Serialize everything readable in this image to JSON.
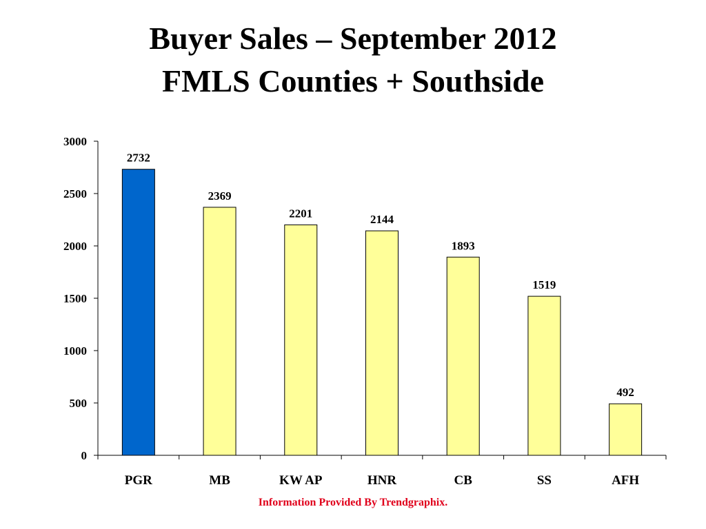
{
  "slide": {
    "title_line1": "Buyer Sales – September 2012",
    "title_line2": "FMLS Counties + Southside",
    "footer": "Information Provided By Trendgraphix."
  },
  "colors": {
    "highlight_bar": "#0066cc",
    "default_bar": "#ffff99",
    "bar_outline": "#000000",
    "footer_text": "#e0001b"
  },
  "chart_data": {
    "type": "bar",
    "title": "Buyer Sales – September 2012 FMLS Counties + Southside",
    "categories": [
      "PGR",
      "MB",
      "KW AP",
      "HNR",
      "CB",
      "SS",
      "AFH"
    ],
    "values": [
      2732,
      2369,
      2201,
      2144,
      1893,
      1519,
      492
    ],
    "data_labels": [
      "2732",
      "2369",
      "2201",
      "2144",
      "1893",
      "1519",
      "492"
    ],
    "highlight_index": 0,
    "ylim": [
      0,
      3000
    ],
    "yticks": [
      0,
      500,
      1000,
      1500,
      2000,
      2500,
      3000
    ],
    "ytick_labels": [
      "0",
      "500",
      "1000",
      "1500",
      "2000",
      "2500",
      "3000"
    ],
    "xlabel": "",
    "ylabel": "",
    "grid": false,
    "legend": "none"
  }
}
